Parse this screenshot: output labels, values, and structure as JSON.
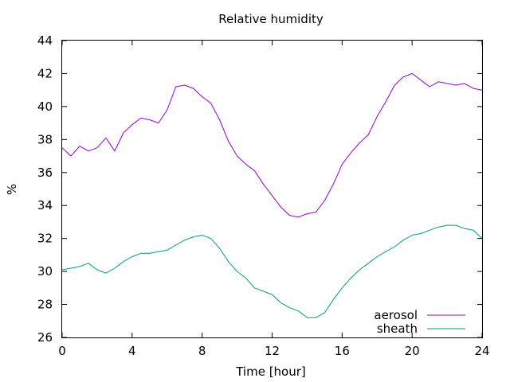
{
  "chart_data": {
    "type": "line",
    "title": "Relative humidity",
    "xlabel": "Time [hour]",
    "ylabel": "%",
    "xlim": [
      0,
      24
    ],
    "ylim": [
      26,
      44
    ],
    "x_ticks": [
      0,
      4,
      8,
      12,
      16,
      20,
      24
    ],
    "y_ticks": [
      26,
      28,
      30,
      32,
      34,
      36,
      38,
      40,
      42,
      44
    ],
    "grid": false,
    "legend_position": "bottom-right",
    "series": [
      {
        "name": "aerosol",
        "color": "#9400d3",
        "x": [
          0,
          0.5,
          1,
          1.5,
          2,
          2.5,
          3,
          3.5,
          4,
          4.5,
          5,
          5.5,
          6,
          6.5,
          7,
          7.5,
          8,
          8.5,
          9,
          9.5,
          10,
          10.5,
          11,
          11.5,
          12,
          12.5,
          13,
          13.5,
          14,
          14.5,
          15,
          15.5,
          16,
          16.5,
          17,
          17.5,
          18,
          18.5,
          19,
          19.5,
          20,
          20.5,
          21,
          21.5,
          22,
          22.5,
          23,
          23.5,
          24
        ],
        "y": [
          37.5,
          37.0,
          37.6,
          37.3,
          37.5,
          38.1,
          37.3,
          38.4,
          38.9,
          39.3,
          39.2,
          39.0,
          39.8,
          41.2,
          41.3,
          41.1,
          40.6,
          40.2,
          39.2,
          37.9,
          37.0,
          36.5,
          36.1,
          35.3,
          34.6,
          33.9,
          33.4,
          33.3,
          33.5,
          33.6,
          34.3,
          35.3,
          36.5,
          37.2,
          37.8,
          38.3,
          39.4,
          40.3,
          41.3,
          41.8,
          42.0,
          41.6,
          41.2,
          41.5,
          41.4,
          41.3,
          41.4,
          41.1,
          41.0
        ]
      },
      {
        "name": "sheath",
        "color": "#009e73",
        "x": [
          0,
          0.5,
          1,
          1.5,
          2,
          2.5,
          3,
          3.5,
          4,
          4.5,
          5,
          5.5,
          6,
          6.5,
          7,
          7.5,
          8,
          8.5,
          9,
          9.5,
          10,
          10.5,
          11,
          11.5,
          12,
          12.5,
          13,
          13.5,
          14,
          14.5,
          15,
          15.5,
          16,
          16.5,
          17,
          17.5,
          18,
          18.5,
          19,
          19.5,
          20,
          20.5,
          21,
          21.5,
          22,
          22.5,
          23,
          23.5,
          24
        ],
        "y": [
          30.1,
          30.2,
          30.3,
          30.5,
          30.1,
          29.9,
          30.2,
          30.6,
          30.9,
          31.1,
          31.1,
          31.2,
          31.3,
          31.6,
          31.9,
          32.1,
          32.2,
          32.0,
          31.4,
          30.6,
          30.0,
          29.6,
          29.0,
          28.8,
          28.6,
          28.1,
          27.8,
          27.6,
          27.2,
          27.2,
          27.5,
          28.3,
          29.0,
          29.6,
          30.1,
          30.5,
          30.9,
          31.2,
          31.5,
          31.9,
          32.2,
          32.3,
          32.5,
          32.7,
          32.8,
          32.8,
          32.6,
          32.5,
          32.0
        ]
      }
    ]
  }
}
